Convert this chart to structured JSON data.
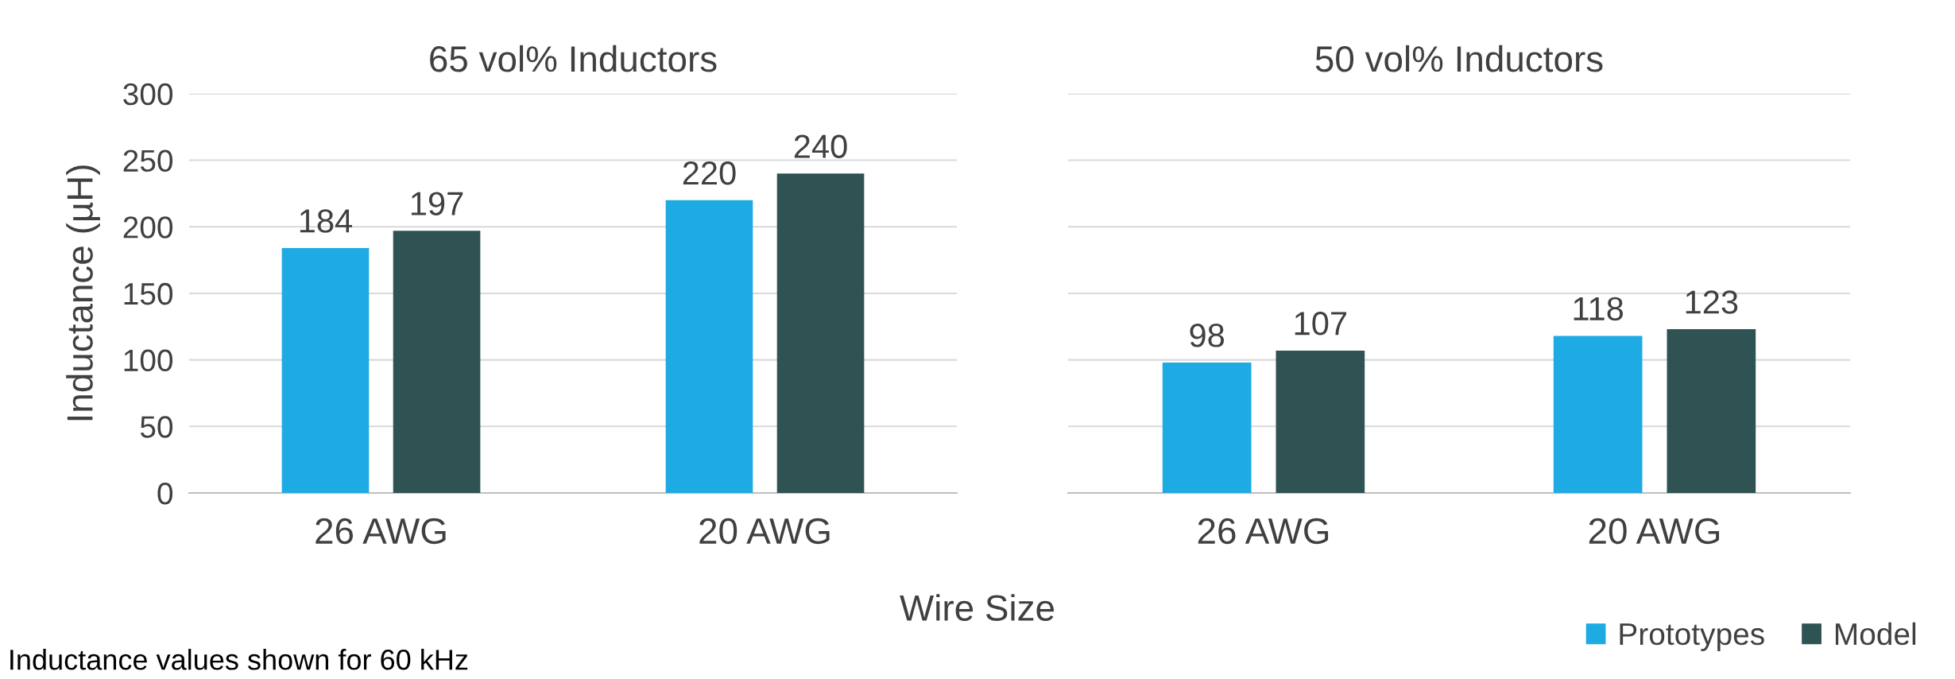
{
  "chart_data": [
    {
      "type": "bar",
      "title": "65 vol% Inductors",
      "ylabel": "Inductance (µH)",
      "xlabel": "Wire Size",
      "categories": [
        "26 AWG",
        "20 AWG"
      ],
      "series": [
        {
          "color": "#1eaae2",
          "values": [
            184,
            220
          ]
        },
        {
          "color": "#2f5352",
          "values": [
            197,
            240
          ]
        }
      ],
      "ylim": [
        0,
        300
      ],
      "yticks": [
        0,
        50,
        100,
        150,
        200,
        250,
        300
      ],
      "grid": "y",
      "data_labels": true,
      "legend": false,
      "annotations": [
        "Inductance values shown for 60 kHz"
      ]
    },
    {
      "type": "bar",
      "title": "50 vol% Inductors",
      "categories": [
        "26 AWG",
        "20 AWG"
      ],
      "series": [
        {
          "name": "Prototypes",
          "color": "#1eaae2",
          "values": [
            98,
            118
          ]
        },
        {
          "name": "Model",
          "color": "#2f5352",
          "values": [
            107,
            123
          ]
        }
      ],
      "ylim": [
        0,
        300
      ],
      "yticks": [
        0,
        50,
        100,
        150,
        200,
        250,
        300
      ],
      "grid": "y",
      "data_labels": true,
      "legend": "bottom right",
      "tick_labels": "x"
    }
  ]
}
